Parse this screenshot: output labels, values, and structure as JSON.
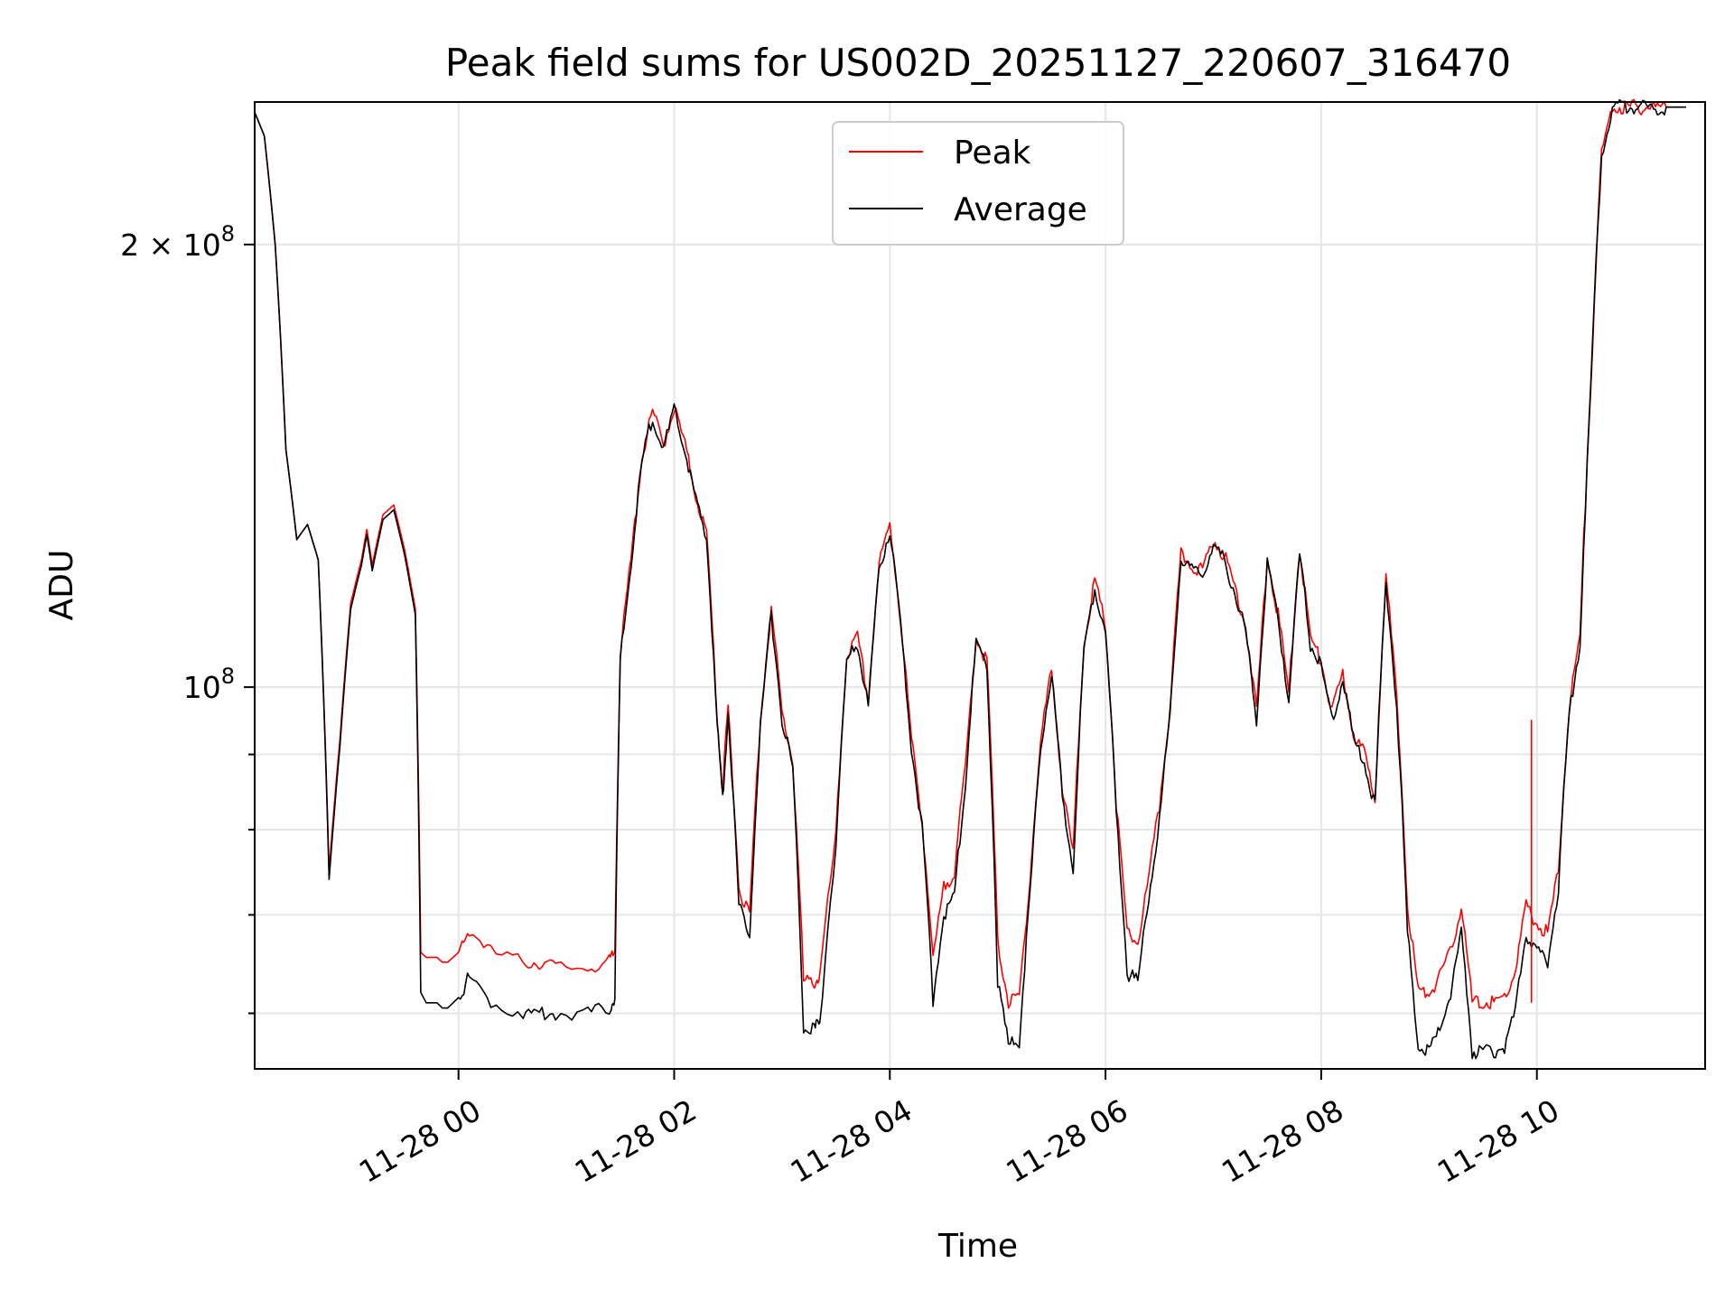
{
  "chart_data": {
    "type": "line",
    "title": "Peak field sums for US002D_20251127_220607_316470",
    "xlabel": "Time",
    "ylabel": "ADU",
    "yscale": "log",
    "ylim": [
      55000000,
      250000000
    ],
    "xlim_hours": [
      -1.89,
      11.56
    ],
    "grid": true,
    "legend_position": "upper center",
    "x_ticks": [
      {
        "hour": 0,
        "label": "11-28 00"
      },
      {
        "hour": 2,
        "label": "11-28 02"
      },
      {
        "hour": 4,
        "label": "11-28 04"
      },
      {
        "hour": 6,
        "label": "11-28 06"
      },
      {
        "hour": 8,
        "label": "11-28 08"
      },
      {
        "hour": 10,
        "label": "11-28 10"
      }
    ],
    "y_major_ticks": [
      {
        "value": 100000000,
        "mantissa": "",
        "exp": "8"
      },
      {
        "value": 200000000,
        "mantissa": "2 × ",
        "exp": "8"
      }
    ],
    "y_minor_ticks": [
      60000000,
      70000000,
      80000000,
      90000000
    ],
    "x_hours": [
      -1.89,
      -1.8,
      -1.7,
      -1.6,
      -1.5,
      -1.4,
      -1.3,
      -1.2,
      -1.1,
      -1.0,
      -0.9,
      -0.85,
      -0.8,
      -0.7,
      -0.6,
      -0.5,
      -0.4,
      -0.35,
      -0.3,
      -0.2,
      -0.15,
      -0.1,
      -0.05,
      0.0,
      0.1,
      0.3,
      0.6,
      0.75,
      0.9,
      1.2,
      1.4,
      1.45,
      1.5,
      1.6,
      1.7,
      1.8,
      1.9,
      2.0,
      2.1,
      2.2,
      2.3,
      2.4,
      2.45,
      2.5,
      2.6,
      2.7,
      2.8,
      2.9,
      3.0,
      3.1,
      3.2,
      3.3,
      3.35,
      3.5,
      3.6,
      3.7,
      3.8,
      3.9,
      4.0,
      4.1,
      4.2,
      4.3,
      4.4,
      4.5,
      4.6,
      4.7,
      4.8,
      4.9,
      5.0,
      5.1,
      5.2,
      5.3,
      5.4,
      5.5,
      5.6,
      5.7,
      5.8,
      5.9,
      6.0,
      6.1,
      6.2,
      6.3,
      6.4,
      6.5,
      6.6,
      6.7,
      6.8,
      6.9,
      7.0,
      7.1,
      7.2,
      7.3,
      7.4,
      7.5,
      7.6,
      7.7,
      7.8,
      7.9,
      8.0,
      8.1,
      8.2,
      8.3,
      8.4,
      8.5,
      8.6,
      8.7,
      8.8,
      8.9,
      9.0,
      9.1,
      9.2,
      9.3,
      9.4,
      9.5,
      9.6,
      9.7,
      9.8,
      9.9,
      10.0,
      10.1,
      10.2,
      10.3,
      10.4,
      10.5,
      10.6,
      10.7,
      10.8,
      10.9,
      11.0,
      11.1,
      11.2,
      11.3,
      11.4,
      11.5,
      11.56
    ],
    "series": [
      {
        "name": "Peak",
        "color": "#ff0000",
        "values": [
          246000000,
          237000000,
          200000000,
          145000000,
          126000000,
          129000000,
          122000000,
          75000000,
          92000000,
          114000000,
          122000000,
          128000000,
          121000000,
          131000000,
          133000000,
          124000000,
          113000000,
          66000000,
          65500000,
          65500000,
          65000000,
          65000000,
          65500000,
          66000000,
          68500000,
          66000000,
          65000000,
          65000000,
          64500000,
          64500000,
          65000000,
          66000000,
          105000000,
          122000000,
          143000000,
          154000000,
          146000000,
          155000000,
          146000000,
          135000000,
          127000000,
          95000000,
          85000000,
          97000000,
          73000000,
          70000000,
          95000000,
          113000000,
          96000000,
          89000000,
          63000000,
          63000000,
          63500000,
          79000000,
          105000000,
          108000000,
          98000000,
          121000000,
          129000000,
          111000000,
          92000000,
          81000000,
          65000000,
          73000000,
          75000000,
          88000000,
          108000000,
          104000000,
          67000000,
          61000000,
          61500000,
          74000000,
          92000000,
          103000000,
          85000000,
          77000000,
          107000000,
          118000000,
          110000000,
          83000000,
          68000000,
          67000000,
          74000000,
          83000000,
          97000000,
          123000000,
          121000000,
          120000000,
          126000000,
          123000000,
          117000000,
          110000000,
          96000000,
          122000000,
          112000000,
          99000000,
          124000000,
          108000000,
          104000000,
          96000000,
          102000000,
          93000000,
          90000000,
          84000000,
          119000000,
          98000000,
          71000000,
          62000000,
          62000000,
          63500000,
          66000000,
          71000000,
          61000000,
          61000000,
          61000000,
          61500000,
          64000000,
          71000000,
          69000000,
          68000000,
          75000000,
          97000000,
          108000000,
          160000000,
          230000000,
          248000000,
          248000000,
          248000000,
          248000000,
          248000000,
          248000000,
          248000000,
          248000000
        ]
      },
      {
        "name": "Average",
        "color": "#000000",
        "values": [
          246000000,
          237000000,
          200000000,
          145000000,
          126000000,
          129000000,
          122000000,
          74000000,
          91000000,
          113000000,
          121000000,
          127000000,
          120000000,
          130000000,
          132000000,
          123000000,
          112000000,
          62000000,
          61000000,
          61000000,
          60500000,
          60500000,
          61000000,
          61500000,
          63500000,
          61000000,
          60000000,
          60000000,
          60000000,
          60000000,
          60500000,
          61500000,
          104000000,
          121000000,
          142000000,
          153000000,
          145000000,
          154000000,
          145000000,
          134000000,
          126000000,
          94000000,
          84000000,
          96000000,
          71000000,
          68000000,
          94000000,
          112000000,
          95000000,
          88000000,
          58500000,
          58500000,
          59000000,
          78000000,
          104000000,
          107000000,
          97000000,
          120000000,
          128000000,
          110000000,
          91000000,
          80000000,
          61000000,
          70000000,
          72000000,
          86000000,
          107000000,
          103000000,
          63000000,
          57000000,
          57500000,
          72000000,
          91000000,
          102000000,
          84000000,
          75000000,
          106000000,
          117000000,
          109000000,
          82000000,
          64000000,
          63000000,
          72000000,
          81000000,
          96000000,
          122000000,
          120000000,
          119000000,
          125000000,
          122000000,
          116000000,
          109000000,
          95000000,
          121000000,
          111000000,
          98000000,
          123000000,
          107000000,
          103000000,
          95000000,
          101000000,
          92000000,
          89000000,
          83000000,
          118000000,
          97000000,
          68000000,
          57000000,
          56500000,
          58500000,
          62000000,
          68000000,
          56500000,
          56500000,
          56500000,
          57000000,
          60000000,
          68000000,
          66000000,
          65000000,
          73000000,
          96000000,
          107000000,
          159000000,
          230000000,
          248000000,
          248000000,
          248000000,
          248000000,
          248000000,
          248000000,
          248000000,
          248000000
        ]
      }
    ],
    "spike": {
      "hour": 9.95,
      "value": 95000000
    }
  }
}
